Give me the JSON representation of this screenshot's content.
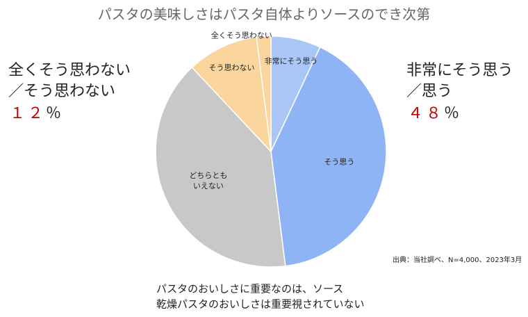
{
  "chart_data": {
    "type": "pie",
    "title": "パスタの美味しさはパスタ自体よりソースのでき次第",
    "categories": [
      "非常にそう思う",
      "そう思う",
      "どちらとも\nいえない",
      "そう思わない",
      "全くそう思わない"
    ],
    "values": [
      7,
      41,
      40,
      10,
      2
    ],
    "colors": [
      "#a9c6f6",
      "#8fb4f5",
      "#c8c8c8",
      "#fbd59e",
      "#fbd59e"
    ],
    "left_annotation": {
      "lines": [
        "全くそう思わない",
        "／そう思わない"
      ],
      "value": "１２",
      "unit": "％"
    },
    "right_annotation": {
      "lines": [
        "非常にそう思う",
        "／思う"
      ],
      "value": "４８",
      "unit": "％"
    },
    "source": "出典：当社調べ、N=4,000、2023年3月",
    "caption": [
      "パスタのおいしさに重要なのは、ソース",
      "乾燥パスタのおいしさは重要視されていない"
    ]
  }
}
